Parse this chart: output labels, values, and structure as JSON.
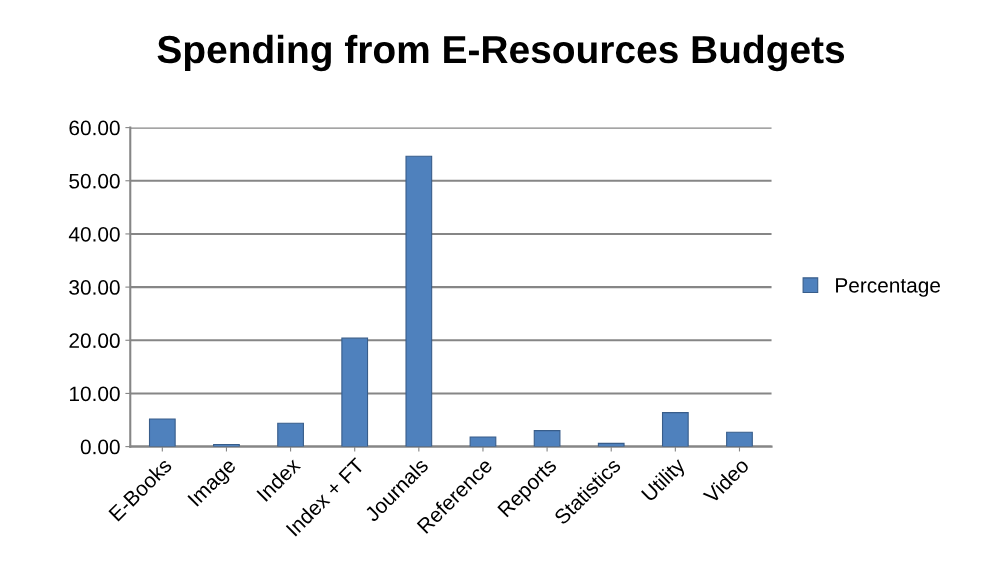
{
  "chart_data": {
    "type": "bar",
    "title": "Spending from E-Resources Budgets",
    "categories": [
      "E-Books",
      "Image",
      "Index",
      "Index + FT",
      "Journals",
      "Reference",
      "Reports",
      "Statistics",
      "Utility",
      "Video"
    ],
    "series": [
      {
        "name": "Percentage",
        "color": "#4f81bd",
        "values": [
          5.2,
          0.4,
          4.4,
          20.4,
          54.6,
          1.8,
          3.0,
          0.6,
          6.4,
          2.7
        ]
      }
    ],
    "ylim": [
      0,
      60
    ],
    "yticks": [
      {
        "value": 0,
        "label": "0.00"
      },
      {
        "value": 10,
        "label": "10.00"
      },
      {
        "value": 20,
        "label": "20.00"
      },
      {
        "value": 30,
        "label": "30.00"
      },
      {
        "value": 40,
        "label": "40.00"
      },
      {
        "value": 50,
        "label": "50.00"
      },
      {
        "value": 60,
        "label": "60.00"
      }
    ],
    "grid": "y",
    "legend": "right"
  }
}
